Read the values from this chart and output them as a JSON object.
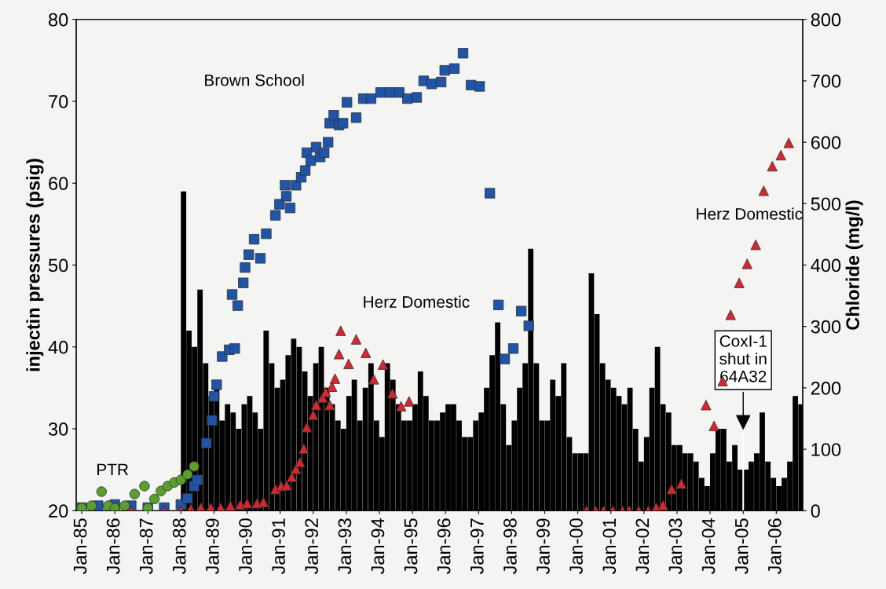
{
  "chart_data": {
    "type": "bar",
    "ylabel": "injectin pressures (psig)",
    "y2label": "Chloride (mg/l)",
    "xlim": [
      "1984-11-01",
      "2006-10-20"
    ],
    "xticks": [
      {
        "value": "1985-01-01",
        "label": "Jan-85"
      },
      {
        "value": "1986-01-01",
        "label": "Jan-86"
      },
      {
        "value": "1987-01-01",
        "label": "Jan-87"
      },
      {
        "value": "1988-01-01",
        "label": "Jan-88"
      },
      {
        "value": "1989-01-01",
        "label": "Jan-89"
      },
      {
        "value": "1990-01-01",
        "label": "Jan-90"
      },
      {
        "value": "1991-01-01",
        "label": "Jan-91"
      },
      {
        "value": "1992-01-01",
        "label": "Jan-92"
      },
      {
        "value": "1993-01-01",
        "label": "Jan-93"
      },
      {
        "value": "1994-01-01",
        "label": "Jan-94"
      },
      {
        "value": "1995-01-01",
        "label": "Jan-95"
      },
      {
        "value": "1996-01-01",
        "label": "Jan-96"
      },
      {
        "value": "1997-01-01",
        "label": "Jan-97"
      },
      {
        "value": "1998-01-01",
        "label": "Jan-98"
      },
      {
        "value": "1999-01-01",
        "label": "Jan-99"
      },
      {
        "value": "2000-01-01",
        "label": "Jan-00"
      },
      {
        "value": "2001-01-01",
        "label": "Jan-01"
      },
      {
        "value": "2002-01-01",
        "label": "Jan-02"
      },
      {
        "value": "2003-01-01",
        "label": "Jan-03"
      },
      {
        "value": "2004-01-01",
        "label": "Jan-04"
      },
      {
        "value": "2005-01-01",
        "label": "Jan-05"
      },
      {
        "value": "2006-01-01",
        "label": "Jan-06"
      }
    ],
    "ylim": [
      20,
      80
    ],
    "yticks": [
      20,
      30,
      40,
      50,
      60,
      70,
      80
    ],
    "y2lim": [
      0,
      800
    ],
    "y2ticks": [
      0,
      100,
      200,
      300,
      400,
      500,
      600,
      700,
      800
    ],
    "grid": false,
    "legend": false,
    "series": [
      {
        "color": "#000000",
        "x": [
          "1988-01",
          "1988-03",
          "1988-05",
          "1988-07",
          "1988-09",
          "1988-11",
          "1989-01",
          "1989-03",
          "1989-05",
          "1989-07",
          "1989-09",
          "1989-11",
          "1990-01",
          "1990-03",
          "1990-05",
          "1990-07",
          "1990-09",
          "1990-11",
          "1991-01",
          "1991-03",
          "1991-05",
          "1991-07",
          "1991-09",
          "1991-11",
          "1992-01",
          "1992-03",
          "1992-05",
          "1992-07",
          "1992-09",
          "1992-11",
          "1993-01",
          "1993-03",
          "1993-05",
          "1993-07",
          "1993-09",
          "1993-11",
          "1994-01",
          "1994-03",
          "1994-05",
          "1994-07",
          "1994-09",
          "1994-11",
          "1995-01",
          "1995-03",
          "1995-05",
          "1995-07",
          "1995-09",
          "1995-11",
          "1996-01",
          "1996-03",
          "1996-05",
          "1996-07",
          "1996-09",
          "1996-11",
          "1997-01",
          "1997-03",
          "1997-05",
          "1997-07",
          "1997-09",
          "1997-11",
          "1998-01",
          "1998-03",
          "1998-05",
          "1998-07",
          "1998-09",
          "1998-11",
          "1999-01",
          "1999-03",
          "1999-05",
          "1999-07",
          "1999-09",
          "1999-11",
          "2000-01",
          "2000-03",
          "2000-05",
          "2000-07",
          "2000-09",
          "2000-11",
          "2001-01",
          "2001-03",
          "2001-05",
          "2001-07",
          "2001-09",
          "2001-11",
          "2002-01",
          "2002-03",
          "2002-05",
          "2002-07",
          "2002-09",
          "2002-11",
          "2003-01",
          "2003-03",
          "2003-05",
          "2003-07",
          "2003-09",
          "2003-11",
          "2004-01",
          "2004-03",
          "2004-05",
          "2004-07",
          "2004-09",
          "2004-11",
          "2005-01",
          "2005-03",
          "2005-05",
          "2005-07",
          "2005-09",
          "2005-11",
          "2006-01",
          "2006-03",
          "2006-05",
          "2006-07",
          "2006-09"
        ],
        "values": [
          59,
          42,
          40,
          47,
          38,
          34,
          35,
          31,
          33,
          32,
          30,
          33,
          34,
          32,
          30,
          42,
          38,
          35,
          36,
          39,
          41,
          40,
          37,
          34,
          38,
          40,
          35,
          33,
          31,
          30,
          34,
          36,
          31,
          35,
          38,
          31,
          29,
          38,
          36,
          33,
          31,
          31,
          33,
          37,
          34,
          31,
          31,
          32,
          33,
          33,
          31,
          29,
          29,
          31,
          32,
          35,
          39,
          43,
          33,
          28,
          31,
          35,
          38,
          52,
          38,
          31,
          31,
          36,
          34,
          38,
          29,
          27,
          27,
          27,
          49,
          44,
          38,
          36,
          35,
          34,
          33,
          35,
          30,
          26,
          29,
          35,
          40,
          33,
          32,
          28,
          28,
          27,
          27,
          26,
          24,
          23,
          27,
          30,
          30,
          26,
          28,
          25,
          25,
          26,
          27,
          32,
          26,
          24,
          23,
          24,
          26,
          34,
          33
        ]
      },
      {
        "type": "scatter",
        "axis": "y2",
        "name": "Brown School",
        "marker": "square",
        "color": "#1f55a8",
        "x": [
          "1985-01-01",
          "1985-07-01",
          "1986-01-01",
          "1986-07-01",
          "1987-01-01",
          "1987-07-01",
          "1988-01-01",
          "1988-03-15",
          "1988-05-26",
          "1988-07-01",
          "1988-10-09",
          "1988-12-10",
          "1989-01-01",
          "1989-01-30",
          "1989-04-01",
          "1989-06-18",
          "1989-08-18",
          "1989-07-20",
          "1989-09-20",
          "1989-11-20",
          "1989-12-10",
          "1990-01-20",
          "1990-03-20",
          "1990-05-28",
          "1990-08-01",
          "1990-11-10",
          "1990-12-25",
          "1991-02-25",
          "1991-03-10",
          "1991-04-22",
          "1991-06-25",
          "1991-08-22",
          "1991-10-05",
          "1991-10-23",
          "1991-12-05",
          "1992-02-03",
          "1992-03-18",
          "1992-05-01",
          "1992-06-14",
          "1992-07-02",
          "1992-08-15",
          "1992-10-12",
          "1992-11-25",
          "1993-01-08",
          "1993-04-20",
          "1993-07-08",
          "1993-10-01",
          "1994-01-15",
          "1994-04-27",
          "1994-08-08",
          "1994-11-07",
          "1995-02-17",
          "1995-05-05",
          "1995-08-01",
          "1995-11-14",
          "1995-12-24",
          "1996-04-08",
          "1996-07-13",
          "1996-10-09",
          "1997-01-12",
          "1997-05-05",
          "1997-08-08",
          "1997-10-16",
          "1998-01-19",
          "1998-04-17",
          "1998-07-09"
        ],
        "values": [
          5,
          8,
          10,
          8,
          5,
          5,
          10,
          20,
          40,
          50,
          110,
          147,
          186,
          205,
          251,
          262,
          264,
          352,
          334,
          371,
          396,
          417,
          442,
          411,
          451,
          481,
          499,
          530,
          512,
          493,
          530,
          543,
          554,
          583,
          570,
          592,
          576,
          583,
          600,
          631,
          644,
          628,
          631,
          665,
          640,
          671,
          671,
          681,
          681,
          681,
          671,
          673,
          700,
          695,
          698,
          717,
          720,
          745,
          693,
          691,
          517,
          335,
          247,
          264,
          325,
          301
        ]
      },
      {
        "type": "scatter",
        "axis": "y2",
        "name": "Herz Domestic",
        "marker": "triangle",
        "color": "#d8262e",
        "x": [
          "1986-07-01",
          "1987-01-01",
          "1987-07-01",
          "1988-01-01",
          "1988-04-20",
          "1988-08-08",
          "1988-11-25",
          "1989-03-15",
          "1989-07-01",
          "1989-10-20",
          "1990-01-01",
          "1990-04-20",
          "1990-07-01",
          "1990-11-10",
          "1991-01-12",
          "1991-03-15",
          "1991-05-10",
          "1991-06-25",
          "1991-08-08",
          "1991-09-20",
          "1991-10-23",
          "1992-01-01",
          "1992-02-03",
          "1992-04-13",
          "1992-05-19",
          "1992-07-02",
          "1992-07-27",
          "1992-08-29",
          "1992-10-12",
          "1992-10-31",
          "1993-01-26",
          "1993-04-20",
          "1993-08-04",
          "1993-10-31",
          "1994-02-10",
          "1994-05-26",
          "1994-08-29",
          "1994-11-25",
          "2000-04-05",
          "2000-07-16",
          "2000-10-12",
          "2001-01-23",
          "2001-05-08",
          "2001-07-24",
          "2001-11-03",
          "2002-02-17",
          "2002-05-16",
          "2002-07-31",
          "2002-11-03",
          "2003-02-17",
          "2003-11-17",
          "2004-02-14",
          "2004-05-19",
          "2004-08-15",
          "2004-11-18",
          "2005-02-14",
          "2005-05-19",
          "2005-08-15",
          "2005-11-18",
          "2006-02-21",
          "2006-05-19"
        ],
        "values": [
          0,
          0,
          0,
          0,
          3,
          5,
          5,
          5,
          8,
          10,
          12,
          12,
          14,
          35,
          40,
          41,
          55,
          68,
          79,
          101,
          136,
          156,
          172,
          184,
          193,
          172,
          202,
          215,
          255,
          293,
          239,
          279,
          257,
          214,
          238,
          191,
          170,
          178,
          0,
          0,
          0,
          0,
          0,
          0,
          0,
          0,
          5,
          9,
          35,
          44,
          172,
          138,
          211,
          319,
          371,
          402,
          433,
          521,
          561,
          579,
          599
        ]
      },
      {
        "type": "scatter",
        "axis": "y2",
        "name": "PTR",
        "marker": "circle",
        "color": "#5a9e2e",
        "x": [
          "1985-01-01",
          "1985-04-20",
          "1985-08-08",
          "1985-10-20",
          "1986-01-01",
          "1986-04-20",
          "1986-08-08",
          "1986-11-25",
          "1987-01-01",
          "1987-03-15",
          "1987-05-26",
          "1987-08-08",
          "1987-10-20",
          "1988-01-01",
          "1988-03-15",
          "1988-05-26"
        ],
        "values": [
          4,
          8,
          31,
          8,
          4,
          8,
          27,
          40,
          4,
          19,
          32,
          40,
          46,
          50,
          59,
          72
        ]
      }
    ],
    "ref_lines": [
      {
        "axis": "x",
        "value": "2005-01-01",
        "label": "CoxI-1\nshut in\n64A32"
      }
    ]
  }
}
